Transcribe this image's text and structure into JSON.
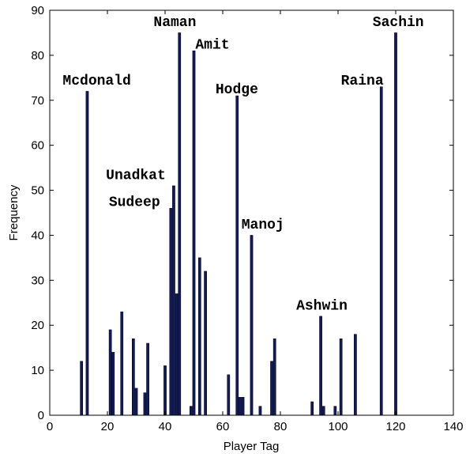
{
  "chart_data": {
    "type": "bar",
    "xlabel": "Player Tag",
    "ylabel": "Frequency",
    "xlim": [
      0,
      140
    ],
    "ylim": [
      0,
      90
    ],
    "xticks": [
      0,
      20,
      40,
      60,
      80,
      100,
      120,
      140
    ],
    "yticks": [
      0,
      10,
      20,
      30,
      40,
      50,
      60,
      70,
      80,
      90
    ],
    "grid": false,
    "bar_color": "#111a5e",
    "bars": [
      {
        "x": 11,
        "y": 12
      },
      {
        "x": 13,
        "y": 72
      },
      {
        "x": 21,
        "y": 19
      },
      {
        "x": 22,
        "y": 14
      },
      {
        "x": 25,
        "y": 23
      },
      {
        "x": 29,
        "y": 17
      },
      {
        "x": 30,
        "y": 6
      },
      {
        "x": 33,
        "y": 5
      },
      {
        "x": 34,
        "y": 16
      },
      {
        "x": 40,
        "y": 11
      },
      {
        "x": 42,
        "y": 46
      },
      {
        "x": 43,
        "y": 51
      },
      {
        "x": 44,
        "y": 27
      },
      {
        "x": 45,
        "y": 85
      },
      {
        "x": 49,
        "y": 2
      },
      {
        "x": 50,
        "y": 81
      },
      {
        "x": 52,
        "y": 35
      },
      {
        "x": 54,
        "y": 32
      },
      {
        "x": 62,
        "y": 9
      },
      {
        "x": 65,
        "y": 71
      },
      {
        "x": 66,
        "y": 4
      },
      {
        "x": 67,
        "y": 4
      },
      {
        "x": 70,
        "y": 40
      },
      {
        "x": 73,
        "y": 2
      },
      {
        "x": 77,
        "y": 12
      },
      {
        "x": 78,
        "y": 17
      },
      {
        "x": 91,
        "y": 3
      },
      {
        "x": 94,
        "y": 22
      },
      {
        "x": 95,
        "y": 2
      },
      {
        "x": 99,
        "y": 2
      },
      {
        "x": 101,
        "y": 17
      },
      {
        "x": 106,
        "y": 18
      },
      {
        "x": 115,
        "y": 73
      },
      {
        "x": 120,
        "y": 85
      }
    ],
    "annotations": [
      {
        "text": "Mcdonald",
        "x": 4.5,
        "y": 73.5
      },
      {
        "text": "Unadkat",
        "x": 19.5,
        "y": 52.5
      },
      {
        "text": "Sudeep",
        "x": 20.5,
        "y": 46.5
      },
      {
        "text": "Naman",
        "x": 36,
        "y": 86.5
      },
      {
        "text": "Amit",
        "x": 50.5,
        "y": 81.5
      },
      {
        "text": "Hodge",
        "x": 57.5,
        "y": 71.5
      },
      {
        "text": "Manoj",
        "x": 66.5,
        "y": 41.5
      },
      {
        "text": "Ashwin",
        "x": 85.5,
        "y": 23.5
      },
      {
        "text": "Raina",
        "x": 101,
        "y": 73.5
      },
      {
        "text": "Sachin",
        "x": 112,
        "y": 86.5
      }
    ]
  }
}
